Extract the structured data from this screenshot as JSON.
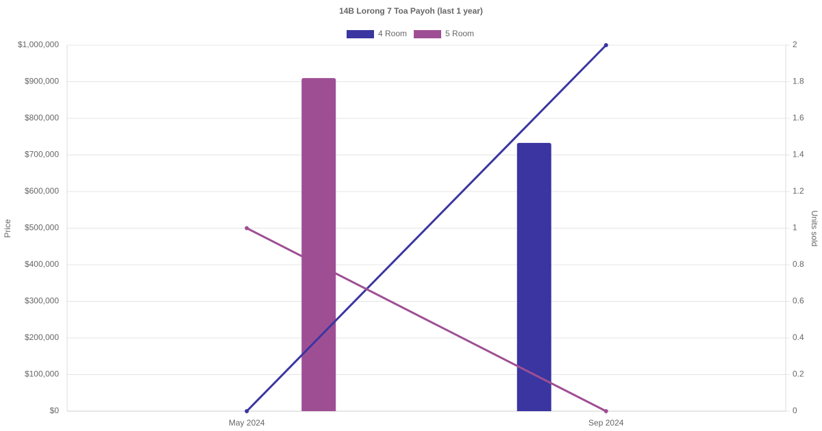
{
  "chart_data": {
    "type": "bar-line",
    "title": "14B Lorong 7 Toa Payoh (last 1 year)",
    "y_label": "Price",
    "y2_label": "Units sold",
    "categories": [
      "May 2024",
      "Sep 2024"
    ],
    "series": [
      {
        "name": "4 Room",
        "color": "#3a35a0",
        "values": [
          null,
          733000
        ],
        "units": [
          0,
          2
        ]
      },
      {
        "name": "5 Room",
        "color": "#9e4f94",
        "values": [
          910000,
          null
        ],
        "units": [
          1,
          0
        ]
      }
    ],
    "ylim": [
      0,
      1000000
    ],
    "yticks": [
      {
        "value": 0,
        "label": "$0"
      },
      {
        "value": 100000,
        "label": "$100,000"
      },
      {
        "value": 200000,
        "label": "$200,000"
      },
      {
        "value": 300000,
        "label": "$300,000"
      },
      {
        "value": 400000,
        "label": "$400,000"
      },
      {
        "value": 500000,
        "label": "$500,000"
      },
      {
        "value": 600000,
        "label": "$600,000"
      },
      {
        "value": 700000,
        "label": "$700,000"
      },
      {
        "value": 800000,
        "label": "$800,000"
      },
      {
        "value": 900000,
        "label": "$900,000"
      },
      {
        "value": 1000000,
        "label": "$1,000,000"
      }
    ],
    "y2lim": [
      0,
      2
    ],
    "y2ticks": [
      0,
      0.2,
      0.4,
      0.6,
      0.8,
      1,
      1.2,
      1.4,
      1.6,
      1.8,
      2
    ],
    "grid": true
  }
}
